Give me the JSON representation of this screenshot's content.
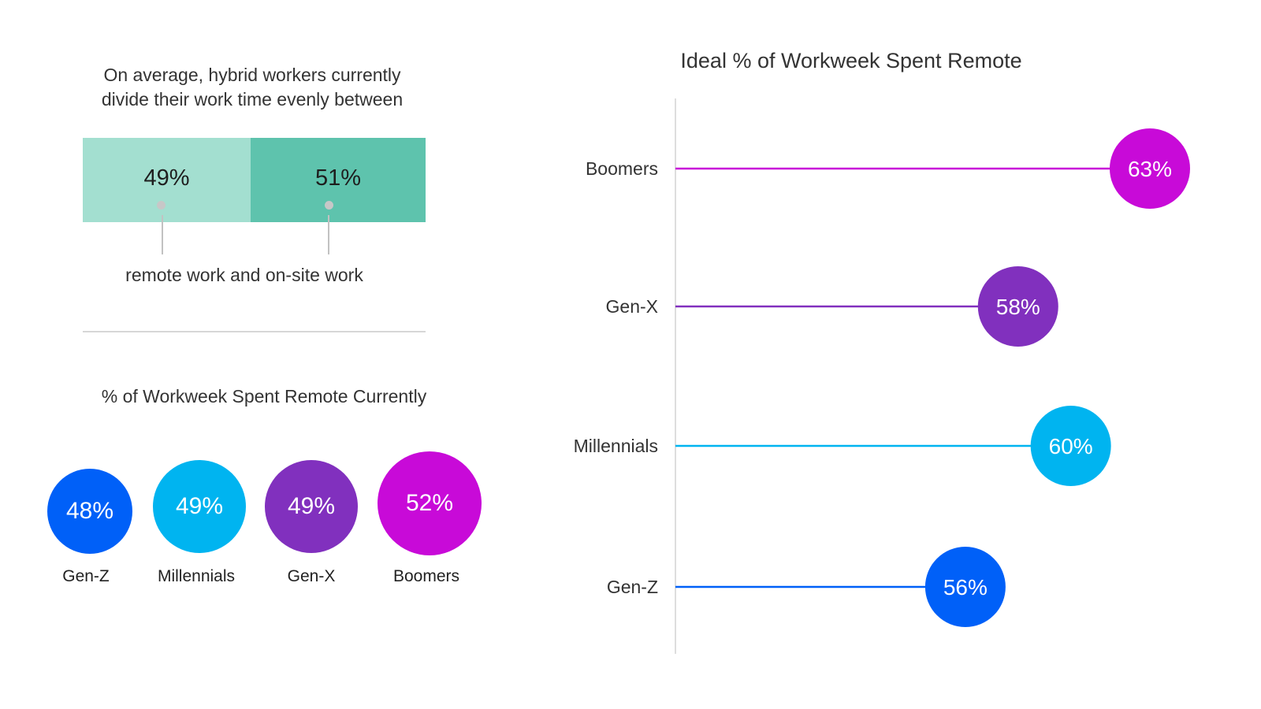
{
  "colors": {
    "gen_z": "#0060f8",
    "millennials": "#00b4f0",
    "gen_x": "#8130be",
    "boomers": "#c80ad8",
    "remote_segment": "#a3dfd0",
    "onsite_segment": "#5ec3ad"
  },
  "split": {
    "intro_line1": "On average, hybrid workers currently",
    "intro_line2": "divide their work time evenly between",
    "remote_value": "49%",
    "onsite_value": "51%",
    "caption": "remote work and on-site work"
  },
  "current": {
    "title": "% of Workweek Spent Remote Currently",
    "items": [
      {
        "label": "Gen-Z",
        "value": "48%"
      },
      {
        "label": "Millennials",
        "value": "49%"
      },
      {
        "label": "Gen-X",
        "value": "49%"
      },
      {
        "label": "Boomers",
        "value": "52%"
      }
    ]
  },
  "chart_data": [
    {
      "type": "bar",
      "title": "",
      "categories": [
        "remote work",
        "on-site work"
      ],
      "values": [
        49,
        51
      ]
    },
    {
      "type": "scatter",
      "title": "% of Workweek Spent Remote Currently",
      "categories": [
        "Gen-Z",
        "Millennials",
        "Gen-X",
        "Boomers"
      ],
      "values": [
        48,
        49,
        49,
        52
      ]
    },
    {
      "type": "bar",
      "title": "Ideal % of Workweek Spent Remote",
      "categories": [
        "Boomers",
        "Gen-X",
        "Millennials",
        "Gen-Z"
      ],
      "values": [
        63,
        58,
        60,
        56
      ],
      "colors": [
        "#c80ad8",
        "#8130be",
        "#00b4f0",
        "#0060f8"
      ]
    }
  ]
}
